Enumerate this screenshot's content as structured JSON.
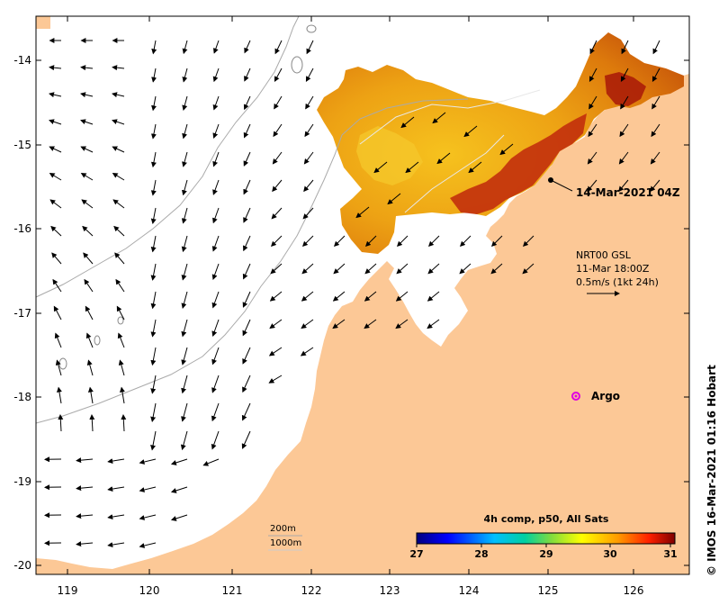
{
  "map": {
    "x_ticks": [
      "119",
      "120",
      "121",
      "122",
      "123",
      "124",
      "125",
      "126"
    ],
    "y_ticks": [
      "-14",
      "-15",
      "-16",
      "-17",
      "-18",
      "-19",
      "-20"
    ],
    "xlim": [
      118.7,
      126.7
    ],
    "ylim": [
      -20.1,
      -13.5
    ],
    "colors": {
      "land": "#fcc896",
      "ocean": "#ffffff",
      "isobath": "#aaaaaa"
    }
  },
  "annotations": {
    "sst_time": "14-Mar-2021 04Z",
    "current_source": "NRT00 GSL",
    "current_time": "11-Mar 18:00Z",
    "current_scale": "0.5m/s (1kt 24h)",
    "argo_label": "Argo",
    "credit": "© IMOS 16-Mar-2021 01:16 Hobart"
  },
  "isobath_legend": {
    "depth_200": "200m",
    "depth_1000": "1000m"
  },
  "colorbar": {
    "title": "4h comp, p50, All Sats",
    "ticks": [
      "27",
      "28",
      "29",
      "30",
      "31"
    ],
    "range": [
      27,
      31
    ],
    "colors": [
      "#00007f",
      "#0000ff",
      "#007fff",
      "#00ffff",
      "#7fff7f",
      "#ffff00",
      "#ff7f00",
      "#ff0000",
      "#7f0000"
    ]
  }
}
